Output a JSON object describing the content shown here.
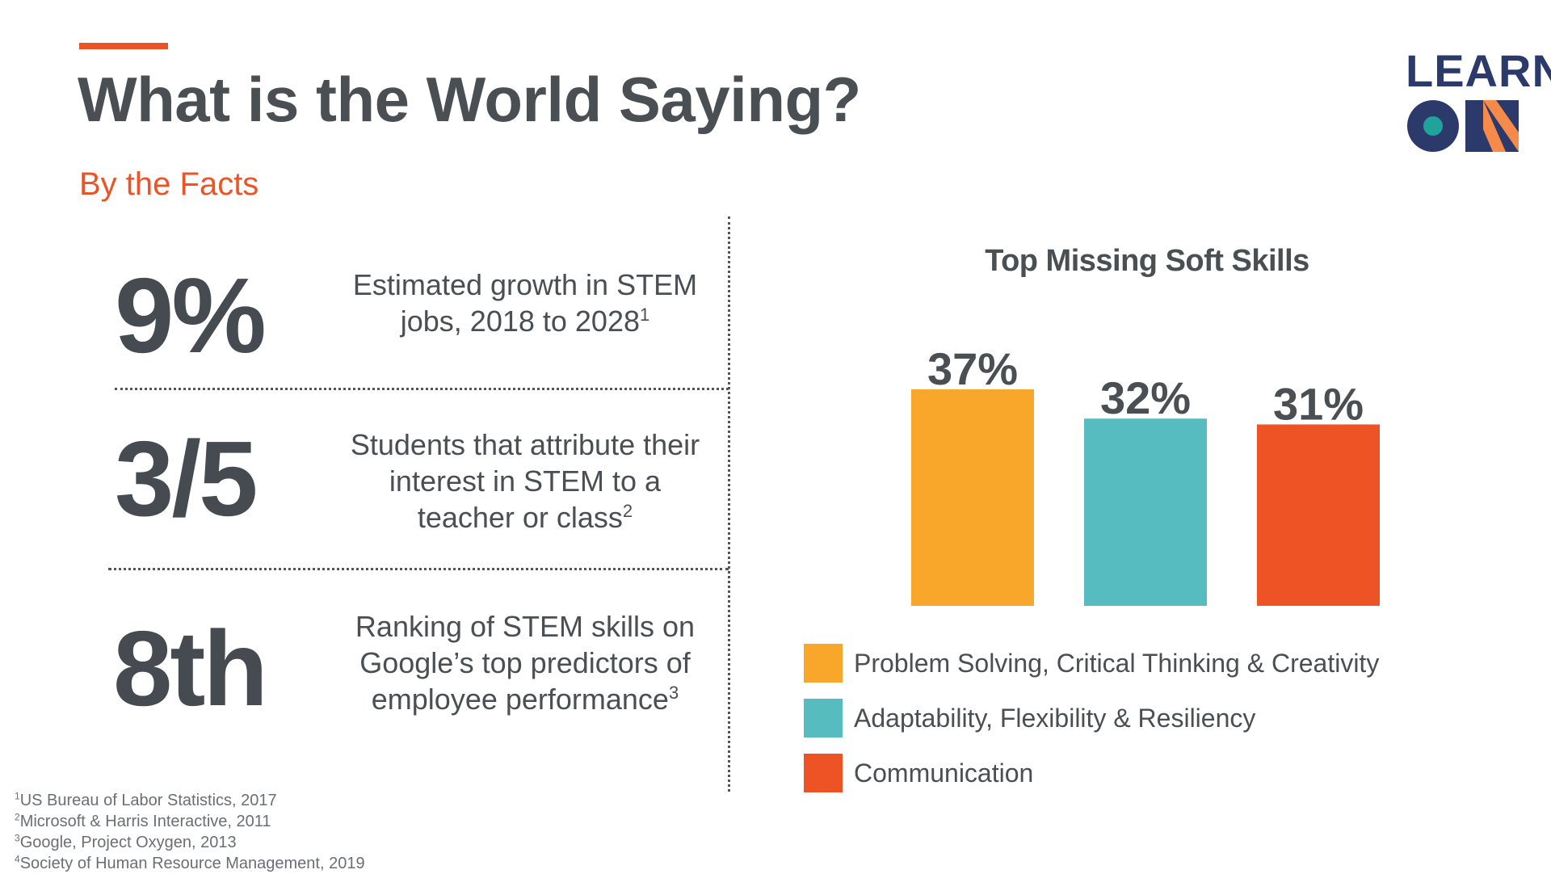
{
  "header": {
    "title": "What is the World Saying?",
    "subtitle": "By the Facts"
  },
  "logo": {
    "line1": "LEARN",
    "letters_second_line": "ON",
    "colors": {
      "navy": "#2b3a6b",
      "teal": "#1fa39b",
      "orange": "#f58a4b"
    }
  },
  "facts": [
    {
      "big": "9%",
      "text": "Estimated growth in STEM jobs, 2018 to 2028",
      "ref": "1"
    },
    {
      "big": "3/5",
      "text": "Students that attribute their interest in STEM to a teacher or class",
      "ref": "2"
    },
    {
      "big": "8th",
      "text": "Ranking of STEM skills on Google’s top predictors of employee performance",
      "ref": "3"
    }
  ],
  "chart_data": {
    "type": "bar",
    "title": "Top Missing Soft Skills",
    "categories": [
      "Problem Solving, Critical Thinking & Creativity",
      "Adaptability, Flexibility & Resiliency",
      "Communication"
    ],
    "values": [
      37,
      32,
      31
    ],
    "value_labels": [
      "37%",
      "32%",
      "31%"
    ],
    "colors": [
      "#f9a72b",
      "#56bcbf",
      "#ee5326"
    ],
    "ylim": [
      0,
      37
    ],
    "legend_position": "bottom",
    "grid": false
  },
  "footnotes": [
    {
      "num": "1",
      "text": "US Bureau of Labor Statistics, 2017"
    },
    {
      "num": "2",
      "text": "Microsoft & Harris Interactive, 2011"
    },
    {
      "num": "3",
      "text": "Google, Project Oxygen, 2013"
    },
    {
      "num": "4",
      "text": "Society of Human Resource Management, 2019"
    }
  ],
  "colors": {
    "accent": "#ee5326",
    "text": "#4a4f53"
  }
}
